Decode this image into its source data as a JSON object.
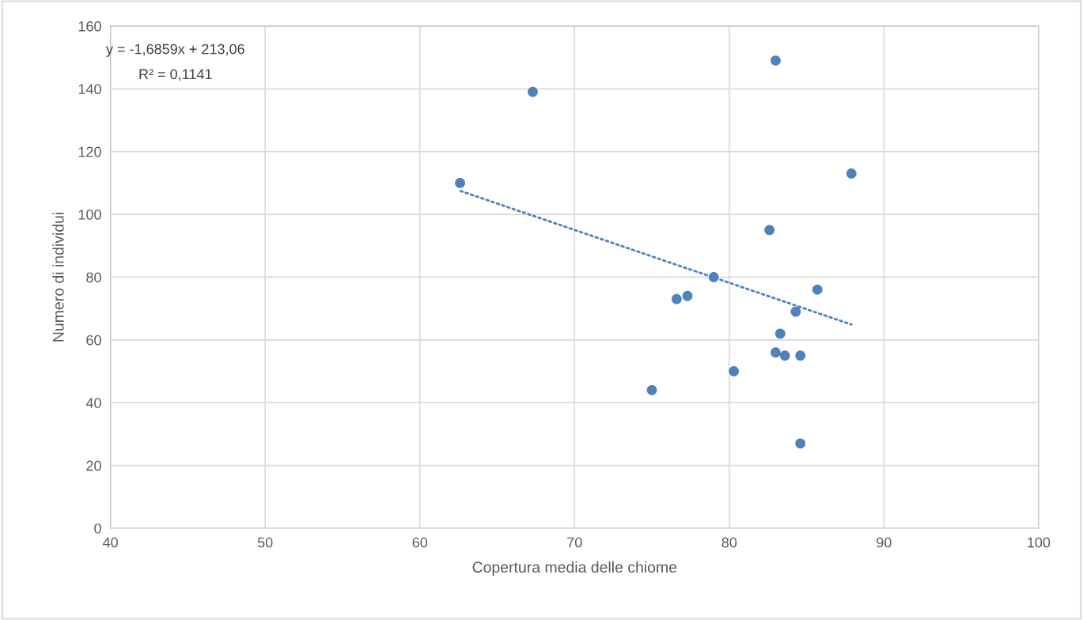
{
  "chart_data": {
    "type": "scatter",
    "xlabel": "Copertura media delle chiome",
    "ylabel": "Numero di individui",
    "series": [
      {
        "color": "#4f81bd",
        "marker": "circle",
        "x": [
          62.6,
          67.3,
          83.0,
          87.9,
          82.6,
          79.0,
          85.7,
          76.6,
          77.3,
          84.3,
          83.3,
          83.0,
          83.6,
          84.6,
          80.3,
          75.0,
          84.6
        ],
        "values": [
          110,
          139,
          149,
          113,
          95,
          80,
          76,
          73,
          74,
          69,
          62,
          56,
          55,
          55,
          50,
          44,
          27
        ]
      },
      {
        "type": "line",
        "color": "#4f81bd",
        "line_style": "dotted",
        "marker": "none",
        "x": [
          62.6,
          87.9
        ],
        "values": [
          107.5,
          64.9
        ]
      }
    ],
    "annotations": [
      "y = -1,6859x + 213,06",
      "R² = 0,1141"
    ],
    "xlim": [
      40,
      100
    ],
    "xticks": [
      40,
      50,
      60,
      70,
      80,
      90,
      100
    ],
    "ylim": [
      0,
      160
    ],
    "yticks": [
      0,
      20,
      40,
      60,
      80,
      100,
      120,
      140,
      160
    ],
    "grid": true,
    "legend": false
  }
}
